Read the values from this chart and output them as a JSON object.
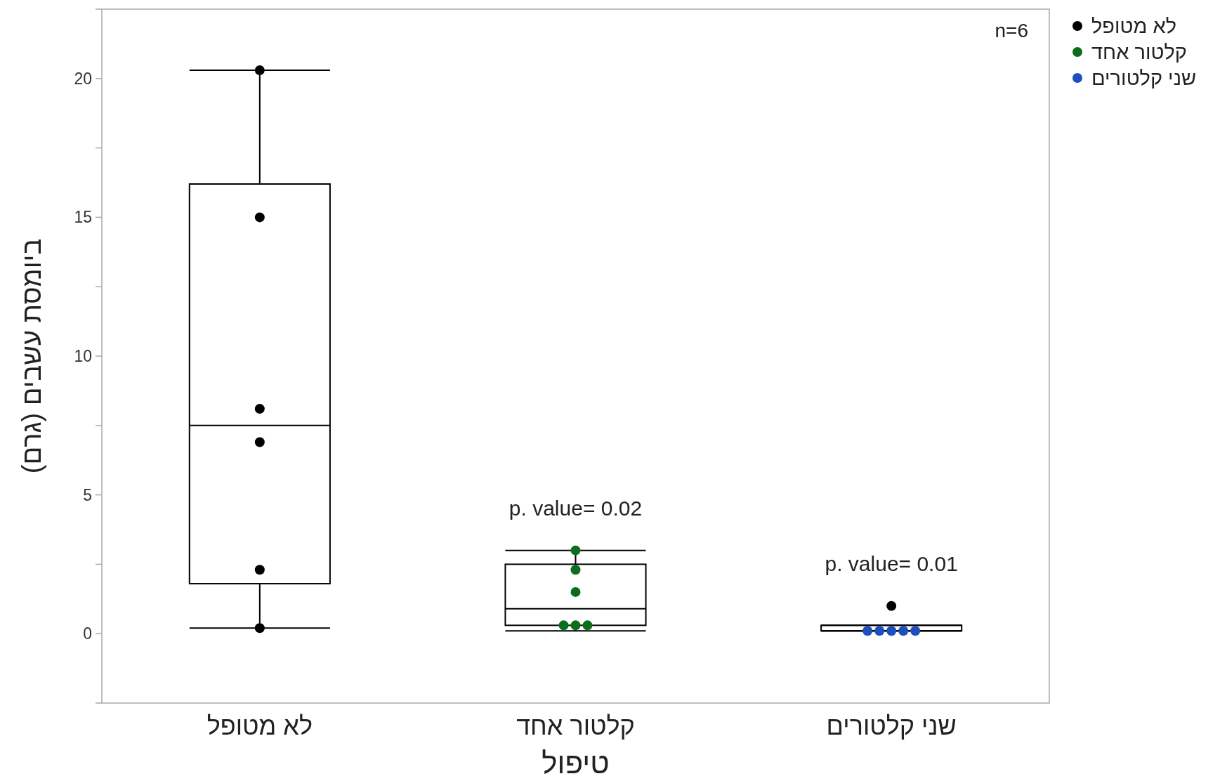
{
  "chart_data": {
    "type": "box",
    "xlabel": "טיפול",
    "ylabel": "ביומסת עשבים (גרם)",
    "categories": [
      "לא מטופל",
      "קלטור אחד",
      "שני קלטורים"
    ],
    "boxes": [
      {
        "low": 0.2,
        "q1": 1.8,
        "median": 7.5,
        "q3": 16.2,
        "high": 20.3
      },
      {
        "low": 0.1,
        "q1": 0.3,
        "median": 0.9,
        "q3": 2.5,
        "high": 3.0
      },
      {
        "low": 0.1,
        "q1": 0.1,
        "median": 0.1,
        "q3": 0.3,
        "high": 0.3
      }
    ],
    "series": [
      {
        "type": "scatter",
        "name": "לא מטופל",
        "color": "#000000",
        "x": [
          "לא מטופל",
          "לא מטופל",
          "לא מטופל",
          "לא מטופל",
          "לא מטופל",
          "לא מטופל",
          "שני קלטורים"
        ],
        "values": [
          20.3,
          15.0,
          8.1,
          6.9,
          2.3,
          0.2,
          1.0
        ]
      },
      {
        "type": "scatter",
        "name": "קלטור אחד",
        "color": "#0b6e1d",
        "x": [
          "קלטור אחד",
          "קלטור אחד",
          "קלטור אחד",
          "קלטור אחד",
          "קלטור אחד",
          "קלטור אחד"
        ],
        "values": [
          3.0,
          2.3,
          1.5,
          0.3,
          0.3,
          0.3
        ]
      },
      {
        "type": "scatter",
        "name": "שני קלטורים",
        "color": "#1f4fbf",
        "x": [
          "שני קלטורים",
          "שני קלטורים",
          "שני קלטורים",
          "שני קלטורים",
          "שני קלטורים"
        ],
        "values": [
          0.1,
          0.1,
          0.1,
          0.1,
          0.1
        ]
      }
    ],
    "marker": "circle",
    "ylim": [
      -2.5,
      22.5
    ],
    "yticks": [
      {
        "value": -2.5,
        "label": null
      },
      0,
      {
        "value": 2.5,
        "label": null
      },
      5,
      {
        "value": 7.5,
        "label": null
      },
      10,
      {
        "value": 12.5,
        "label": null
      },
      15,
      {
        "value": 17.5,
        "label": null
      },
      20,
      {
        "value": 22.5,
        "label": null
      }
    ],
    "annotations": [
      "n=6",
      "p. value= 0.02",
      "p. value= 0.01"
    ],
    "legend": "top right"
  }
}
